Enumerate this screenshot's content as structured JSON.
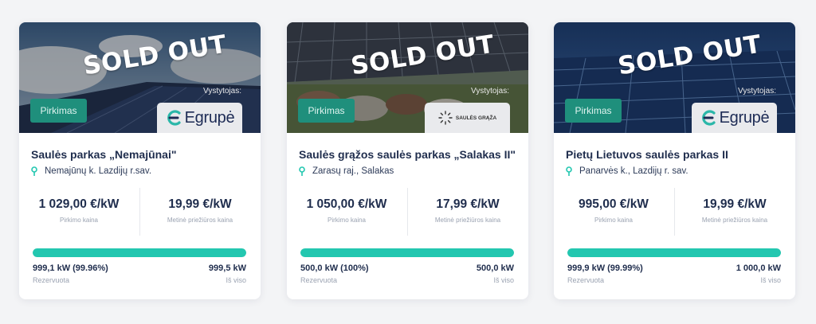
{
  "cards": [
    {
      "sold_label": "SOLD OUT",
      "badge": "Pirkimas",
      "developer_label": "Vystytojas:",
      "developer_logo_text": "Egrupė",
      "title": "Saulės parkas „Nemajūnai\"",
      "location": "Nemajūnų k. Lazdijų r.sav.",
      "price_value": "1 029,00 €/kW",
      "price_label": "Pirkimo kaina",
      "maintenance_value": "19,99 €/kW",
      "maintenance_label": "Metinė priežiūros kaina",
      "progress_percent": 99.96,
      "reserved_value": "999,1 kW (99.96%)",
      "reserved_label": "Rezervuota",
      "total_value": "999,5 kW",
      "total_label": "Iš viso"
    },
    {
      "sold_label": "SOLD OUT",
      "badge": "Pirkimas",
      "developer_label": "Vystytojas:",
      "developer_logo_text": "SAULĖS GRĄŽA",
      "title": "Saulės grąžos saulės parkas „Salakas II\"",
      "location": "Zarasų raj., Salakas",
      "price_value": "1 050,00 €/kW",
      "price_label": "Pirkimo kaina",
      "maintenance_value": "17,99 €/kW",
      "maintenance_label": "Metinė priežiūros kaina",
      "progress_percent": 100,
      "reserved_value": "500,0 kW (100%)",
      "reserved_label": "Rezervuota",
      "total_value": "500,0 kW",
      "total_label": "Iš viso"
    },
    {
      "sold_label": "SOLD OUT",
      "badge": "Pirkimas",
      "developer_label": "Vystytojas:",
      "developer_logo_text": "Egrupė",
      "title": "Pietų Lietuvos saulės parkas II",
      "location": "Panarvės k., Lazdijų r. sav.",
      "price_value": "995,00 €/kW",
      "price_label": "Pirkimo kaina",
      "maintenance_value": "19,99 €/kW",
      "maintenance_label": "Metinė priežiūros kaina",
      "progress_percent": 99.99,
      "reserved_value": "999,9 kW (99.99%)",
      "reserved_label": "Rezervuota",
      "total_value": "1 000,0 kW",
      "total_label": "Iš viso"
    }
  ],
  "colors": {
    "accent": "#23c7b0",
    "badge": "#1f8f7c",
    "text": "#1f2d4d",
    "muted": "#9aa2b1"
  },
  "icons": {
    "location": "map-pin-icon"
  }
}
